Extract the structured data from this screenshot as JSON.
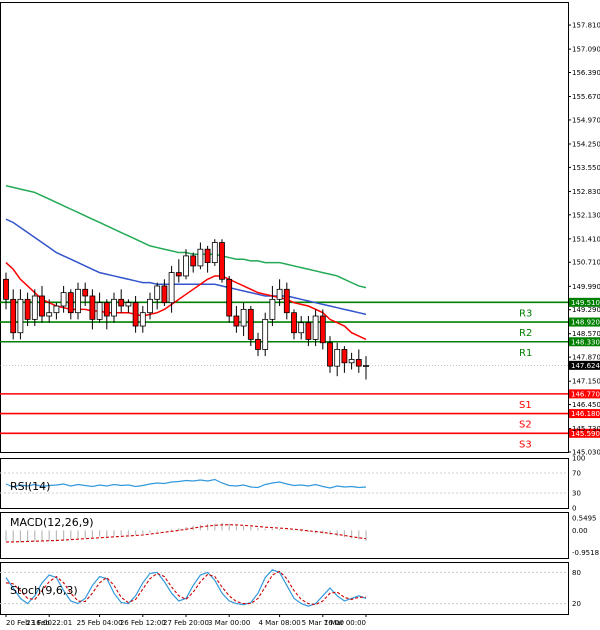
{
  "colors": {
    "bull": "#ffffff",
    "bear": "#ff0000",
    "wick": "#000000",
    "ma_fast": "#ff0000",
    "ma_mid": "#3355cc",
    "ma_slow": "#22aa55",
    "resistance": "#008000",
    "support": "#ff0000",
    "rsi": "#3399dd",
    "macd_hist": "#bbbbbb",
    "macd_signal": "#cc0000",
    "stoch_main": "#3399dd",
    "stoch_signal": "#cc0000",
    "current_price": "#000000"
  },
  "chart_data": [
    {
      "type": "candlestick",
      "panel": "price",
      "ylim": [
        145.03,
        158.5
      ],
      "y_ticks": [
        "157.810",
        "157.090",
        "156.390",
        "155.670",
        "154.970",
        "154.250",
        "153.550",
        "152.830",
        "152.130",
        "151.410",
        "150.710",
        "149.990",
        "149.290",
        "148.570",
        "147.870",
        "147.150",
        "146.450",
        "145.730",
        "145.030"
      ],
      "x_ticks": [
        "20 Feb 16:00",
        "23 Feb 22:01",
        "25 Feb 04:00",
        "26 Feb 12:00",
        "27 Feb 20:00",
        "3 Mar 00:00",
        "4 Mar 08:00",
        "5 Mar 16:00",
        "7 Mar 00:00"
      ],
      "candles": [
        [
          150.2,
          149.6,
          150.4,
          149.3
        ],
        [
          149.6,
          148.6,
          149.9,
          148.4
        ],
        [
          148.6,
          149.6,
          149.9,
          148.4
        ],
        [
          149.6,
          149.0,
          149.8,
          148.8
        ],
        [
          149.0,
          149.7,
          149.9,
          148.8
        ],
        [
          149.7,
          149.1,
          150.0,
          148.9
        ],
        [
          149.1,
          149.2,
          149.6,
          148.9
        ],
        [
          149.2,
          149.4,
          149.5,
          149.0
        ],
        [
          149.4,
          149.8,
          150.0,
          149.2
        ],
        [
          149.8,
          149.2,
          149.9,
          149.0
        ],
        [
          149.2,
          149.9,
          150.1,
          149.0
        ],
        [
          149.9,
          149.7,
          150.1,
          149.4
        ],
        [
          149.7,
          149.0,
          149.9,
          148.7
        ],
        [
          149.0,
          149.5,
          149.8,
          148.9
        ],
        [
          149.5,
          149.1,
          149.6,
          148.7
        ],
        [
          149.1,
          149.6,
          149.8,
          148.9
        ],
        [
          149.6,
          149.4,
          149.9,
          149.2
        ],
        [
          149.4,
          149.5,
          149.6,
          149.2
        ],
        [
          149.5,
          148.8,
          149.7,
          148.6
        ],
        [
          148.8,
          149.2,
          149.4,
          148.6
        ],
        [
          149.2,
          149.6,
          149.8,
          149.0
        ],
        [
          149.6,
          150.0,
          150.1,
          149.3
        ],
        [
          150.0,
          149.5,
          150.2,
          149.4
        ],
        [
          149.5,
          150.4,
          150.6,
          149.2
        ],
        [
          150.4,
          150.3,
          150.8,
          150.1
        ],
        [
          150.3,
          150.9,
          151.1,
          150.2
        ],
        [
          150.9,
          150.6,
          151.0,
          150.4
        ],
        [
          150.6,
          151.1,
          151.3,
          150.5
        ],
        [
          151.1,
          150.7,
          151.2,
          150.4
        ],
        [
          150.7,
          151.3,
          151.4,
          150.6
        ],
        [
          151.3,
          150.2,
          151.4,
          150.1
        ],
        [
          150.2,
          149.1,
          150.3,
          148.9
        ],
        [
          149.1,
          148.8,
          149.4,
          148.6
        ],
        [
          148.8,
          149.3,
          149.5,
          148.5
        ],
        [
          149.3,
          148.4,
          149.4,
          148.2
        ],
        [
          148.4,
          148.1,
          148.6,
          147.9
        ],
        [
          148.1,
          149.0,
          149.2,
          147.9
        ],
        [
          149.0,
          149.6,
          150.0,
          148.8
        ],
        [
          149.6,
          149.9,
          150.2,
          149.4
        ],
        [
          149.9,
          149.2,
          150.1,
          149.0
        ],
        [
          149.2,
          148.6,
          149.3,
          148.4
        ],
        [
          148.6,
          148.9,
          149.1,
          148.4
        ],
        [
          148.9,
          148.4,
          149.1,
          148.2
        ],
        [
          148.4,
          149.1,
          149.3,
          148.2
        ],
        [
          149.1,
          148.3,
          149.3,
          148.1
        ],
        [
          148.3,
          147.6,
          148.5,
          147.4
        ],
        [
          147.6,
          148.1,
          148.3,
          147.3
        ],
        [
          148.1,
          147.7,
          148.2,
          147.4
        ],
        [
          147.7,
          147.8,
          148.0,
          147.5
        ],
        [
          147.8,
          147.6,
          148.1,
          147.4
        ],
        [
          147.6,
          147.62,
          147.9,
          147.2
        ]
      ],
      "ma_fast": [
        150.7,
        150.5,
        150.2,
        150.0,
        149.8,
        149.6,
        149.5,
        149.4,
        149.35,
        149.3,
        149.3,
        149.3,
        149.25,
        149.25,
        149.2,
        149.2,
        149.2,
        149.2,
        149.15,
        149.1,
        149.15,
        149.2,
        149.3,
        149.45,
        149.6,
        149.75,
        149.9,
        150.05,
        150.2,
        150.3,
        150.3,
        150.2,
        150.1,
        150.0,
        149.9,
        149.8,
        149.75,
        149.7,
        149.65,
        149.6,
        149.5,
        149.45,
        149.4,
        149.3,
        149.2,
        149.0,
        148.9,
        148.8,
        148.6,
        148.5,
        148.4
      ],
      "ma_mid": [
        152.0,
        151.9,
        151.75,
        151.6,
        151.45,
        151.3,
        151.15,
        151.0,
        150.9,
        150.8,
        150.7,
        150.6,
        150.5,
        150.4,
        150.35,
        150.3,
        150.25,
        150.2,
        150.15,
        150.1,
        150.1,
        150.05,
        150.05,
        150.05,
        150.05,
        150.05,
        150.05,
        150.05,
        150.05,
        150.05,
        150.0,
        149.95,
        149.9,
        149.85,
        149.8,
        149.75,
        149.7,
        149.7,
        149.7,
        149.7,
        149.65,
        149.6,
        149.55,
        149.5,
        149.45,
        149.4,
        149.35,
        149.3,
        149.25,
        149.2,
        149.15
      ],
      "ma_slow": [
        153.0,
        152.95,
        152.9,
        152.85,
        152.8,
        152.7,
        152.6,
        152.5,
        152.4,
        152.3,
        152.2,
        152.1,
        152.0,
        151.9,
        151.8,
        151.7,
        151.6,
        151.5,
        151.4,
        151.3,
        151.2,
        151.15,
        151.1,
        151.05,
        151.0,
        151.0,
        150.95,
        150.95,
        150.95,
        150.95,
        150.9,
        150.85,
        150.8,
        150.8,
        150.75,
        150.75,
        150.7,
        150.7,
        150.7,
        150.65,
        150.6,
        150.55,
        150.5,
        150.45,
        150.4,
        150.35,
        150.3,
        150.2,
        150.1,
        150.0,
        149.95
      ],
      "levels": [
        {
          "label": "R3",
          "value": "149.510",
          "kind": "resistance"
        },
        {
          "label": "R2",
          "value": "148.920",
          "kind": "resistance"
        },
        {
          "label": "R1",
          "value": "148.330",
          "kind": "resistance"
        },
        {
          "label": "S1",
          "value": "146.770",
          "kind": "support"
        },
        {
          "label": "S2",
          "value": "146.180",
          "kind": "support"
        },
        {
          "label": "S3",
          "value": "145.590",
          "kind": "support"
        }
      ],
      "current_price": "147.624"
    },
    {
      "type": "line",
      "panel": "rsi",
      "title": "RSI(14)",
      "ylim": [
        0,
        100
      ],
      "y_ticks": [
        "100",
        "70",
        "30",
        "0"
      ],
      "values": [
        48,
        42,
        46,
        44,
        47,
        43,
        45,
        46,
        48,
        44,
        47,
        45,
        43,
        46,
        44,
        47,
        45,
        46,
        43,
        45,
        48,
        50,
        49,
        52,
        53,
        55,
        54,
        56,
        54,
        57,
        50,
        45,
        44,
        46,
        42,
        41,
        47,
        50,
        52,
        48,
        45,
        46,
        44,
        47,
        43,
        40,
        44,
        42,
        43,
        41,
        42
      ]
    },
    {
      "type": "bar+line",
      "panel": "macd",
      "title": "MACD(12,26,9)",
      "ylim": [
        -1.2,
        0.8
      ],
      "y_ticks": [
        "0.5495",
        "0.00",
        "-0.9518"
      ],
      "histogram": [
        -0.45,
        -0.5,
        -0.52,
        -0.5,
        -0.48,
        -0.47,
        -0.45,
        -0.43,
        -0.4,
        -0.38,
        -0.35,
        -0.33,
        -0.3,
        -0.28,
        -0.26,
        -0.24,
        -0.22,
        -0.2,
        -0.18,
        -0.15,
        -0.1,
        -0.05,
        0.0,
        0.05,
        0.1,
        0.15,
        0.2,
        0.25,
        0.28,
        0.3,
        0.32,
        0.3,
        0.25,
        0.2,
        0.15,
        0.1,
        0.08,
        0.06,
        0.05,
        0.02,
        -0.02,
        -0.05,
        -0.08,
        -0.12,
        -0.15,
        -0.2,
        -0.25,
        -0.3,
        -0.35,
        -0.4,
        -0.45
      ],
      "signal": [
        -0.5,
        -0.5,
        -0.49,
        -0.48,
        -0.47,
        -0.46,
        -0.45,
        -0.44,
        -0.42,
        -0.4,
        -0.38,
        -0.36,
        -0.34,
        -0.32,
        -0.3,
        -0.28,
        -0.26,
        -0.24,
        -0.22,
        -0.2,
        -0.16,
        -0.12,
        -0.08,
        -0.04,
        0.0,
        0.05,
        0.1,
        0.15,
        0.19,
        0.22,
        0.24,
        0.25,
        0.24,
        0.22,
        0.2,
        0.17,
        0.14,
        0.12,
        0.1,
        0.08,
        0.05,
        0.02,
        -0.02,
        -0.05,
        -0.09,
        -0.13,
        -0.17,
        -0.22,
        -0.27,
        -0.32,
        -0.36
      ]
    },
    {
      "type": "line",
      "panel": "stoch",
      "title": "Stoch(9,6,3)",
      "ylim": [
        0,
        100
      ],
      "y_ticks": [
        "80",
        "20"
      ],
      "main": [
        70,
        50,
        30,
        20,
        35,
        60,
        75,
        70,
        45,
        25,
        20,
        30,
        55,
        72,
        68,
        40,
        22,
        20,
        35,
        60,
        78,
        80,
        62,
        40,
        25,
        30,
        55,
        75,
        80,
        65,
        40,
        25,
        20,
        18,
        22,
        40,
        70,
        85,
        80,
        55,
        30,
        20,
        15,
        20,
        35,
        50,
        35,
        25,
        30,
        35,
        30
      ],
      "signal": [
        60,
        58,
        45,
        30,
        28,
        45,
        62,
        72,
        60,
        40,
        25,
        24,
        40,
        60,
        70,
        55,
        32,
        22,
        28,
        48,
        68,
        78,
        72,
        52,
        35,
        28,
        42,
        62,
        76,
        72,
        52,
        35,
        24,
        20,
        20,
        30,
        52,
        75,
        82,
        68,
        45,
        28,
        20,
        18,
        25,
        40,
        42,
        32,
        28,
        32,
        32
      ]
    }
  ]
}
